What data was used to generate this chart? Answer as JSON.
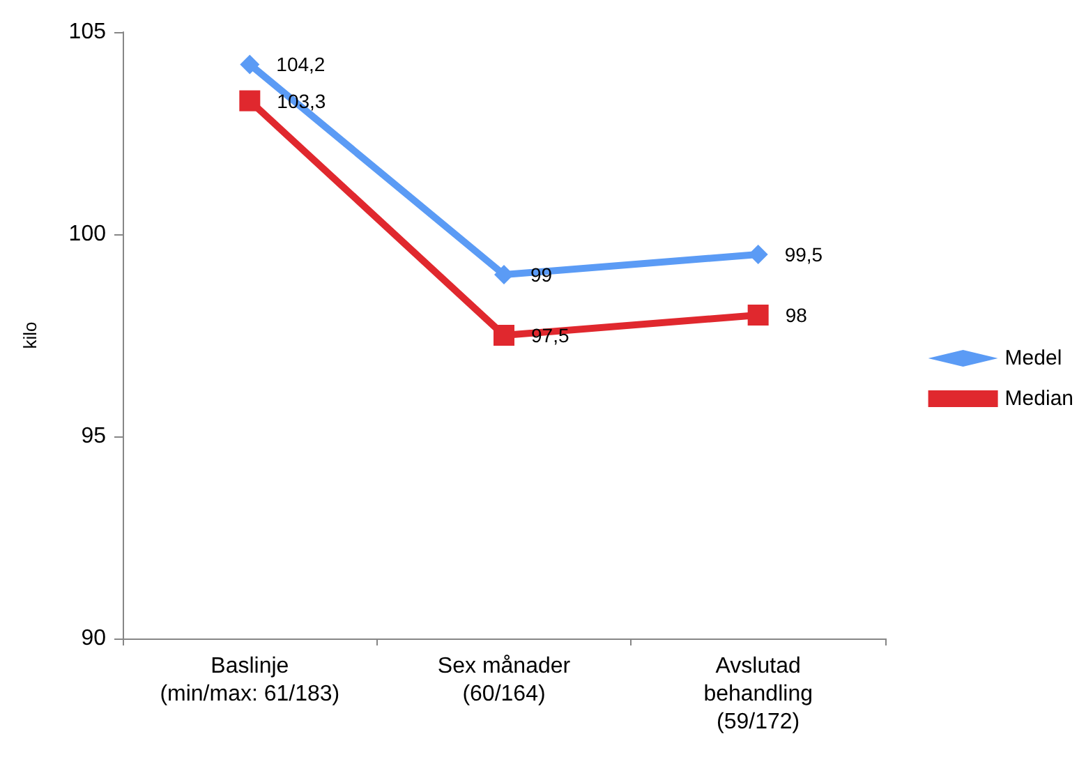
{
  "chart_data": {
    "type": "line",
    "ylabel": "kilo",
    "categories": [
      "Baslinje\n(min/max: 61/183)",
      "Sex månader\n(60/164)",
      "Avslutad\nbehandling\n(59/172)"
    ],
    "series": [
      {
        "name": "Medel",
        "color": "#5b9bf5",
        "values": [
          104.2,
          99,
          99.5
        ],
        "value_labels": [
          "104,2",
          "99",
          "99,5"
        ],
        "marker": "diamond"
      },
      {
        "name": "Median",
        "color": "#e0282e",
        "values": [
          103.3,
          97.5,
          98
        ],
        "value_labels": [
          "103,3",
          "97,5",
          "98"
        ],
        "marker": "square"
      }
    ],
    "ylim": [
      90,
      105
    ],
    "yticks": [
      90,
      95,
      100,
      105
    ],
    "grid": false,
    "legend": "right",
    "line_style": "solid"
  }
}
